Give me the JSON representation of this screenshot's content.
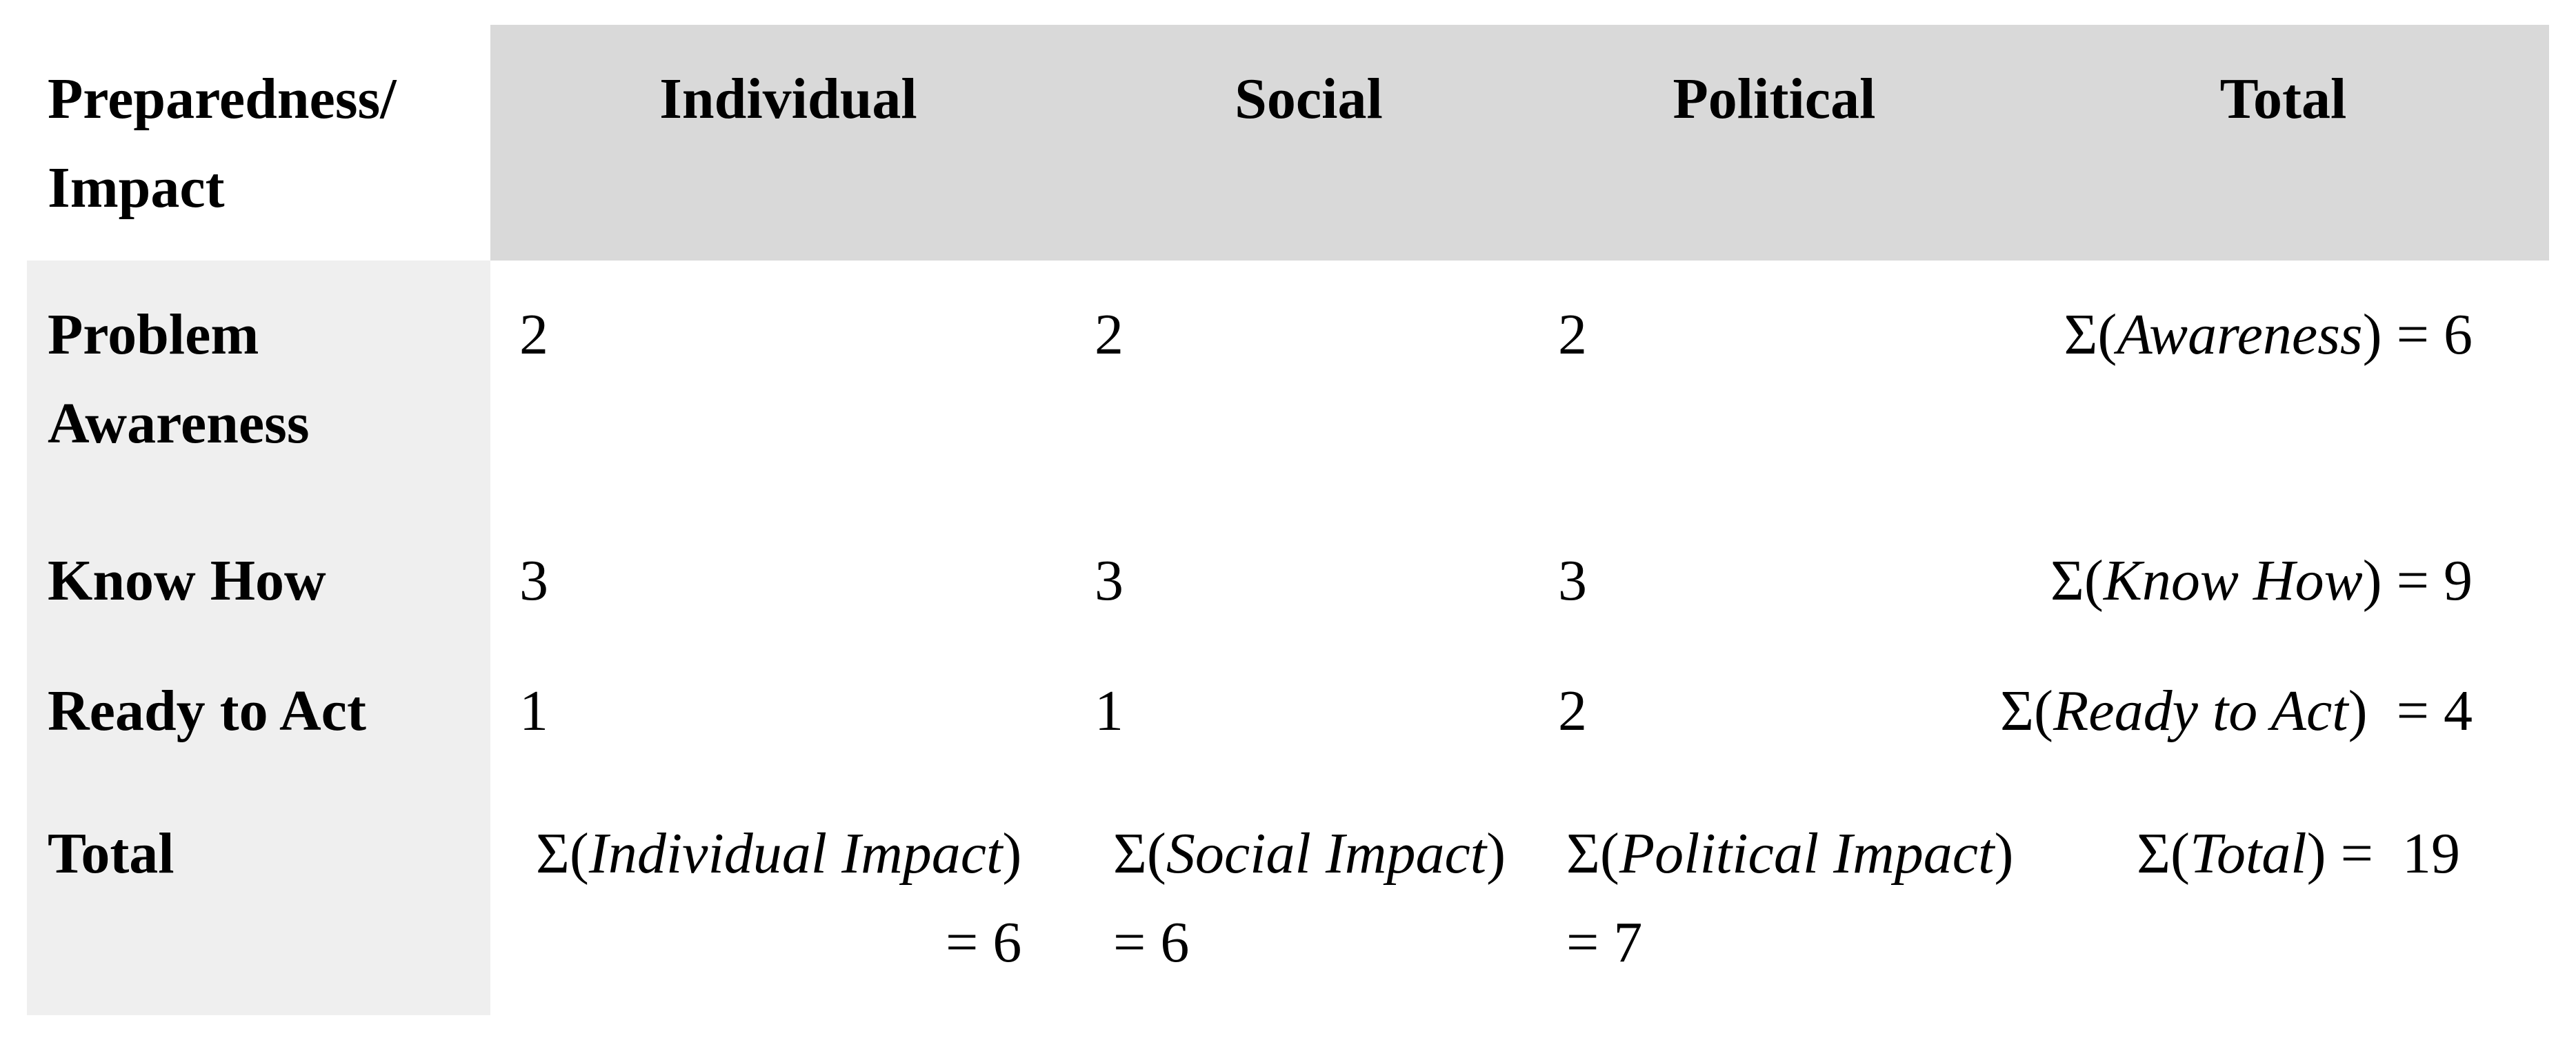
{
  "colors": {
    "header_bg": "#d9d9d9",
    "row_label_bg": "#efefef",
    "text": "#000000",
    "page_bg": "#ffffff"
  },
  "table": {
    "corner": {
      "line1": "Preparedness/",
      "line2": "Impact"
    },
    "columns": [
      "Individual",
      "Social",
      "Political",
      "Total"
    ],
    "rows": [
      {
        "label_line1": "Problem",
        "label_line2": "Awareness",
        "individual": "2",
        "social": "2",
        "political": "2",
        "total": {
          "prefix": "Σ(",
          "term": "Awareness",
          "suffix": ") = ",
          "value": "6"
        }
      },
      {
        "label_line1": "Know How",
        "individual": "3",
        "social": "3",
        "political": "3",
        "total": {
          "prefix": "Σ(",
          "term": "Know How",
          "suffix": ") = ",
          "value": "9"
        }
      },
      {
        "label_line1": "Ready to Act",
        "individual": "1",
        "social": "1",
        "political": "2",
        "total": {
          "prefix": "Σ(",
          "term": "Ready to Act",
          "suffix": ")  = ",
          "value": "4"
        }
      }
    ],
    "footer": {
      "label": "Total",
      "individual": {
        "prefix": "Σ(",
        "term": "Individual Impact",
        "close": ")",
        "line2": "= 6"
      },
      "social": {
        "prefix": "Σ(",
        "term": "Social Impact",
        "close": ")",
        "line2": "= 6"
      },
      "political": {
        "prefix": "Σ(",
        "term": "Political Impact",
        "close": ")",
        "line2": "= 7"
      },
      "total": {
        "prefix": "Σ(",
        "term": "Total",
        "suffix": ") =  ",
        "value": "19"
      }
    }
  }
}
